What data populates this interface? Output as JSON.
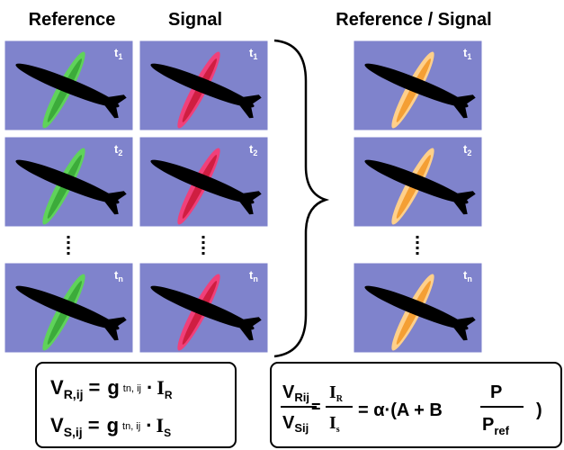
{
  "headers": [
    "Reference",
    "Signal",
    "Reference / Signal"
  ],
  "time_labels": [
    {
      "t": "t",
      "sub": "1"
    },
    {
      "t": "t",
      "sub": "2"
    },
    {
      "t": "t",
      "sub": "n"
    }
  ],
  "equations": {
    "left": [
      {
        "v": "V",
        "v_sub": "R,ij",
        "eq": "=",
        "g": "g",
        "g_sup": "tn, ij",
        "dot": "·",
        "i": "I",
        "i_sub": "R"
      },
      {
        "v": "V",
        "v_sub": "S,ij",
        "eq": "=",
        "g": "g",
        "g_sup": "tn, ij",
        "dot": "·",
        "i": "I",
        "i_sub": "S"
      }
    ],
    "right": {
      "num1": "V",
      "num1_sub": "Rij",
      "den1": "V",
      "den1_sub": "Sij",
      "eq1": "=",
      "num2": "I",
      "num2_sub": "R",
      "den2": "I",
      "den2_sub": "s",
      "rest": "= α·(A + B",
      "num3": "P",
      "den3": "P",
      "den3_sub": "ref",
      "close": ")"
    }
  }
}
